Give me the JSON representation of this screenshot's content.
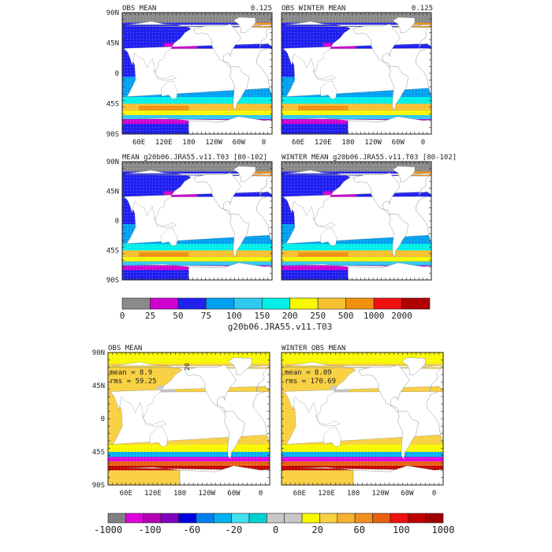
{
  "chart_data": [
    {
      "type": "heatmap",
      "title": "OBS MEAN",
      "value_label": "0.125",
      "ytick_labels": [
        "90N",
        "45N",
        "0",
        "45S",
        "90S"
      ],
      "xtick_labels": [
        "60E",
        "120E",
        "180",
        "120W",
        "60W",
        "0"
      ],
      "colormap": "mld"
    },
    {
      "type": "heatmap",
      "title": "OBS WINTER MEAN",
      "value_label": "0.125",
      "xtick_labels": [
        "60E",
        "120E",
        "180",
        "120W",
        "60W",
        "0"
      ],
      "colormap": "mld"
    },
    {
      "type": "heatmap",
      "title": "MEAN g20b06.JRA55.v11.T03 [80-102]",
      "ytick_labels": [
        "90N",
        "45N",
        "0",
        "45S",
        "90S"
      ],
      "colormap": "mld"
    },
    {
      "type": "heatmap",
      "title": "WINTER MEAN g20b06.JRA55.v11.T03 [80-102]",
      "colormap": "mld"
    },
    {
      "type": "heatmap",
      "title": "OBS MEAN",
      "stats": [
        "mean = 8.9",
        "rms = 59.25"
      ],
      "contour_label": "20",
      "ytick_labels": [
        "90N",
        "45N",
        "0",
        "45S",
        "90S"
      ],
      "xtick_labels": [
        "60E",
        "120E",
        "180",
        "120W",
        "60W",
        "0"
      ],
      "colormap": "diff"
    },
    {
      "type": "heatmap",
      "title": "WINTER OBS MEAN",
      "stats": [
        "mean = 8.09",
        "rms = 170.69"
      ],
      "xtick_labels": [
        "60E",
        "120E",
        "180",
        "120W",
        "60W",
        "0"
      ],
      "colormap": "diff"
    }
  ],
  "colorbars": {
    "mld": {
      "label": "g20b06.JRA55.v11.T03",
      "ticks": [
        "0",
        "25",
        "50",
        "75",
        "100",
        "150",
        "200",
        "250",
        "500",
        "1000",
        "2000"
      ],
      "colors": [
        "#8a8a8a",
        "#d000d0",
        "#2020f0",
        "#00a0f0",
        "#30c8f0",
        "#00f0e8",
        "#f8f800",
        "#f8c030",
        "#f09010",
        "#f01010",
        "#b00000"
      ]
    },
    "diff": {
      "ticks": [
        "-1000",
        "-100",
        "-60",
        "-20",
        "0",
        "20",
        "60",
        "100",
        "1000"
      ],
      "colors": [
        "#808080",
        "#e000e0",
        "#b000b0",
        "#8000c0",
        "#0000e0",
        "#0080f0",
        "#00b0f0",
        "#40e0f0",
        "#00d0d0",
        "#c8c8c8",
        "#c8c8c8",
        "#f8f800",
        "#f8d040",
        "#f8b030",
        "#f09020",
        "#e86010",
        "#f01010",
        "#c00000",
        "#a00000"
      ]
    }
  },
  "colors": {
    "land": "#ffffff",
    "ice": "#808080",
    "frame": "#222222"
  }
}
